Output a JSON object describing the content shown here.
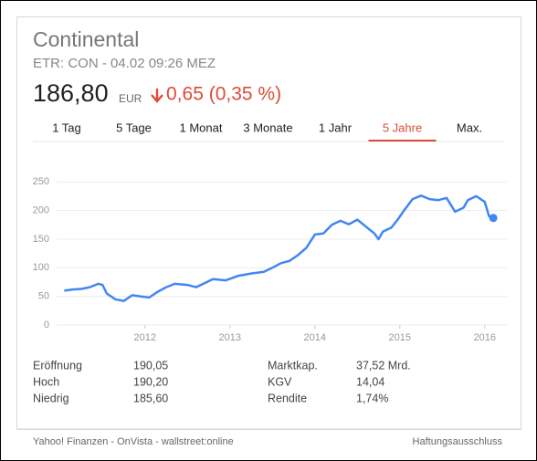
{
  "header": {
    "title": "Continental",
    "subtitle": "ETR: CON - 04.02 09:26 MEZ",
    "price": "186,80",
    "currency": "EUR",
    "change": "0,65 (0,35 %)"
  },
  "tabs": {
    "items": [
      "1 Tag",
      "5 Tage",
      "1 Monat",
      "3 Monate",
      "1 Jahr",
      "5 Jahre",
      "Max."
    ],
    "selected": 5
  },
  "chart_data": {
    "type": "line",
    "color": "#4285f4",
    "grid": true,
    "x": [
      2011.05,
      2011.15,
      2011.25,
      2011.35,
      2011.45,
      2011.5,
      2011.55,
      2011.65,
      2011.75,
      2011.85,
      2011.95,
      2012.05,
      2012.15,
      2012.25,
      2012.35,
      2012.5,
      2012.6,
      2012.7,
      2012.8,
      2012.95,
      2013.1,
      2013.25,
      2013.4,
      2013.5,
      2013.6,
      2013.7,
      2013.8,
      2013.9,
      2014.0,
      2014.1,
      2014.2,
      2014.3,
      2014.4,
      2014.5,
      2014.6,
      2014.7,
      2014.75,
      2014.8,
      2014.9,
      2014.98,
      2015.05,
      2015.15,
      2015.25,
      2015.35,
      2015.45,
      2015.55,
      2015.6,
      2015.65,
      2015.75,
      2015.8,
      2015.9,
      2016.0,
      2016.05,
      2016.1
    ],
    "values": [
      60,
      62,
      63,
      66,
      72,
      70,
      55,
      45,
      42,
      52,
      50,
      48,
      58,
      66,
      72,
      70,
      66,
      73,
      80,
      78,
      86,
      90,
      93,
      100,
      108,
      112,
      122,
      135,
      158,
      160,
      175,
      182,
      176,
      184,
      172,
      160,
      150,
      163,
      170,
      185,
      200,
      220,
      226,
      220,
      218,
      222,
      210,
      198,
      205,
      218,
      225,
      215,
      190,
      187
    ],
    "xlim": [
      2010.96,
      2016.26
    ],
    "xticks": [
      2012,
      2013,
      2014,
      2015,
      2016
    ],
    "ylim": [
      0,
      260
    ],
    "yticks": [
      0,
      50,
      100,
      150,
      200,
      250
    ]
  },
  "stats": {
    "rows": [
      [
        "Eröffnung",
        "190,05",
        "Marktkap.",
        "37,52 Mrd."
      ],
      [
        "Hoch",
        "190,20",
        "KGV",
        "14,04"
      ],
      [
        "Niedrig",
        "185,60",
        "Rendite",
        "1,74%"
      ]
    ]
  },
  "footer": {
    "sources": "Yahoo! Finanzen - OnVista - wallstreet:online",
    "disclaimer": "Haftungsausschluss"
  }
}
